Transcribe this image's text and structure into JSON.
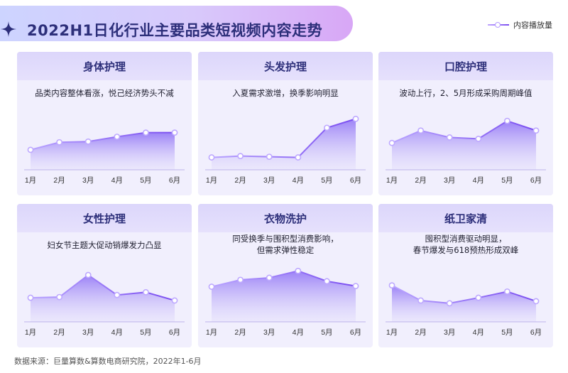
{
  "title": "2022H1日化行业主要品类短视频内容走势",
  "legend": {
    "label": "内容播放量"
  },
  "source": "数据来源：巨量算数&算数电商研究院，2022年1-6月",
  "colors": {
    "accent": "#7a4df0",
    "title": "#2d2f7a",
    "panel": "#f1effd",
    "panel_header": "#dcd6fb"
  },
  "chart_data": [
    {
      "type": "area",
      "title": "身体护理",
      "subtitle": "品类内容整体看涨，悦己经济势头不减",
      "x": [
        "1月",
        "2月",
        "3月",
        "4月",
        "5月",
        "6月"
      ],
      "values": [
        3.0,
        4.1,
        4.2,
        4.9,
        5.5,
        5.5
      ],
      "ylim": [
        0,
        10
      ]
    },
    {
      "type": "area",
      "title": "头发护理",
      "subtitle": "入夏需求激增，换季影响明显",
      "x": [
        "1月",
        "2月",
        "3月",
        "4月",
        "5月",
        "6月"
      ],
      "values": [
        1.9,
        2.1,
        2.0,
        1.9,
        6.2,
        7.5
      ],
      "ylim": [
        0,
        10
      ]
    },
    {
      "type": "area",
      "title": "口腔护理",
      "subtitle": "波动上行，2、5月形成采购周期峰值",
      "x": [
        "1月",
        "2月",
        "3月",
        "4月",
        "5月",
        "6月"
      ],
      "values": [
        4.0,
        5.8,
        4.8,
        4.6,
        7.2,
        5.8
      ],
      "ylim": [
        0,
        10
      ]
    },
    {
      "type": "area",
      "title": "女性护理",
      "subtitle": "妇女节主题大促动销爆发力凸显",
      "x": [
        "1月",
        "2月",
        "3月",
        "4月",
        "5月",
        "6月"
      ],
      "values": [
        3.6,
        3.7,
        6.9,
        4.0,
        4.4,
        3.2
      ],
      "ylim": [
        0,
        10
      ]
    },
    {
      "type": "area",
      "title": "衣物洗护",
      "subtitle": "同受换季与围积型消费影响，\n但需求弹性稳定",
      "x": [
        "1月",
        "2月",
        "3月",
        "4月",
        "5月",
        "6月"
      ],
      "values": [
        5.2,
        6.2,
        6.5,
        7.5,
        6.0,
        5.3
      ],
      "ylim": [
        0,
        10
      ]
    },
    {
      "type": "area",
      "title": "纸卫家清",
      "subtitle": "囤积型消费驱动明显，\n春节爆发与618预热形成双峰",
      "x": [
        "1月",
        "2月",
        "3月",
        "4月",
        "5月",
        "6月"
      ],
      "values": [
        5.4,
        3.2,
        2.8,
        3.6,
        4.5,
        3.1
      ],
      "ylim": [
        0,
        10
      ]
    }
  ]
}
